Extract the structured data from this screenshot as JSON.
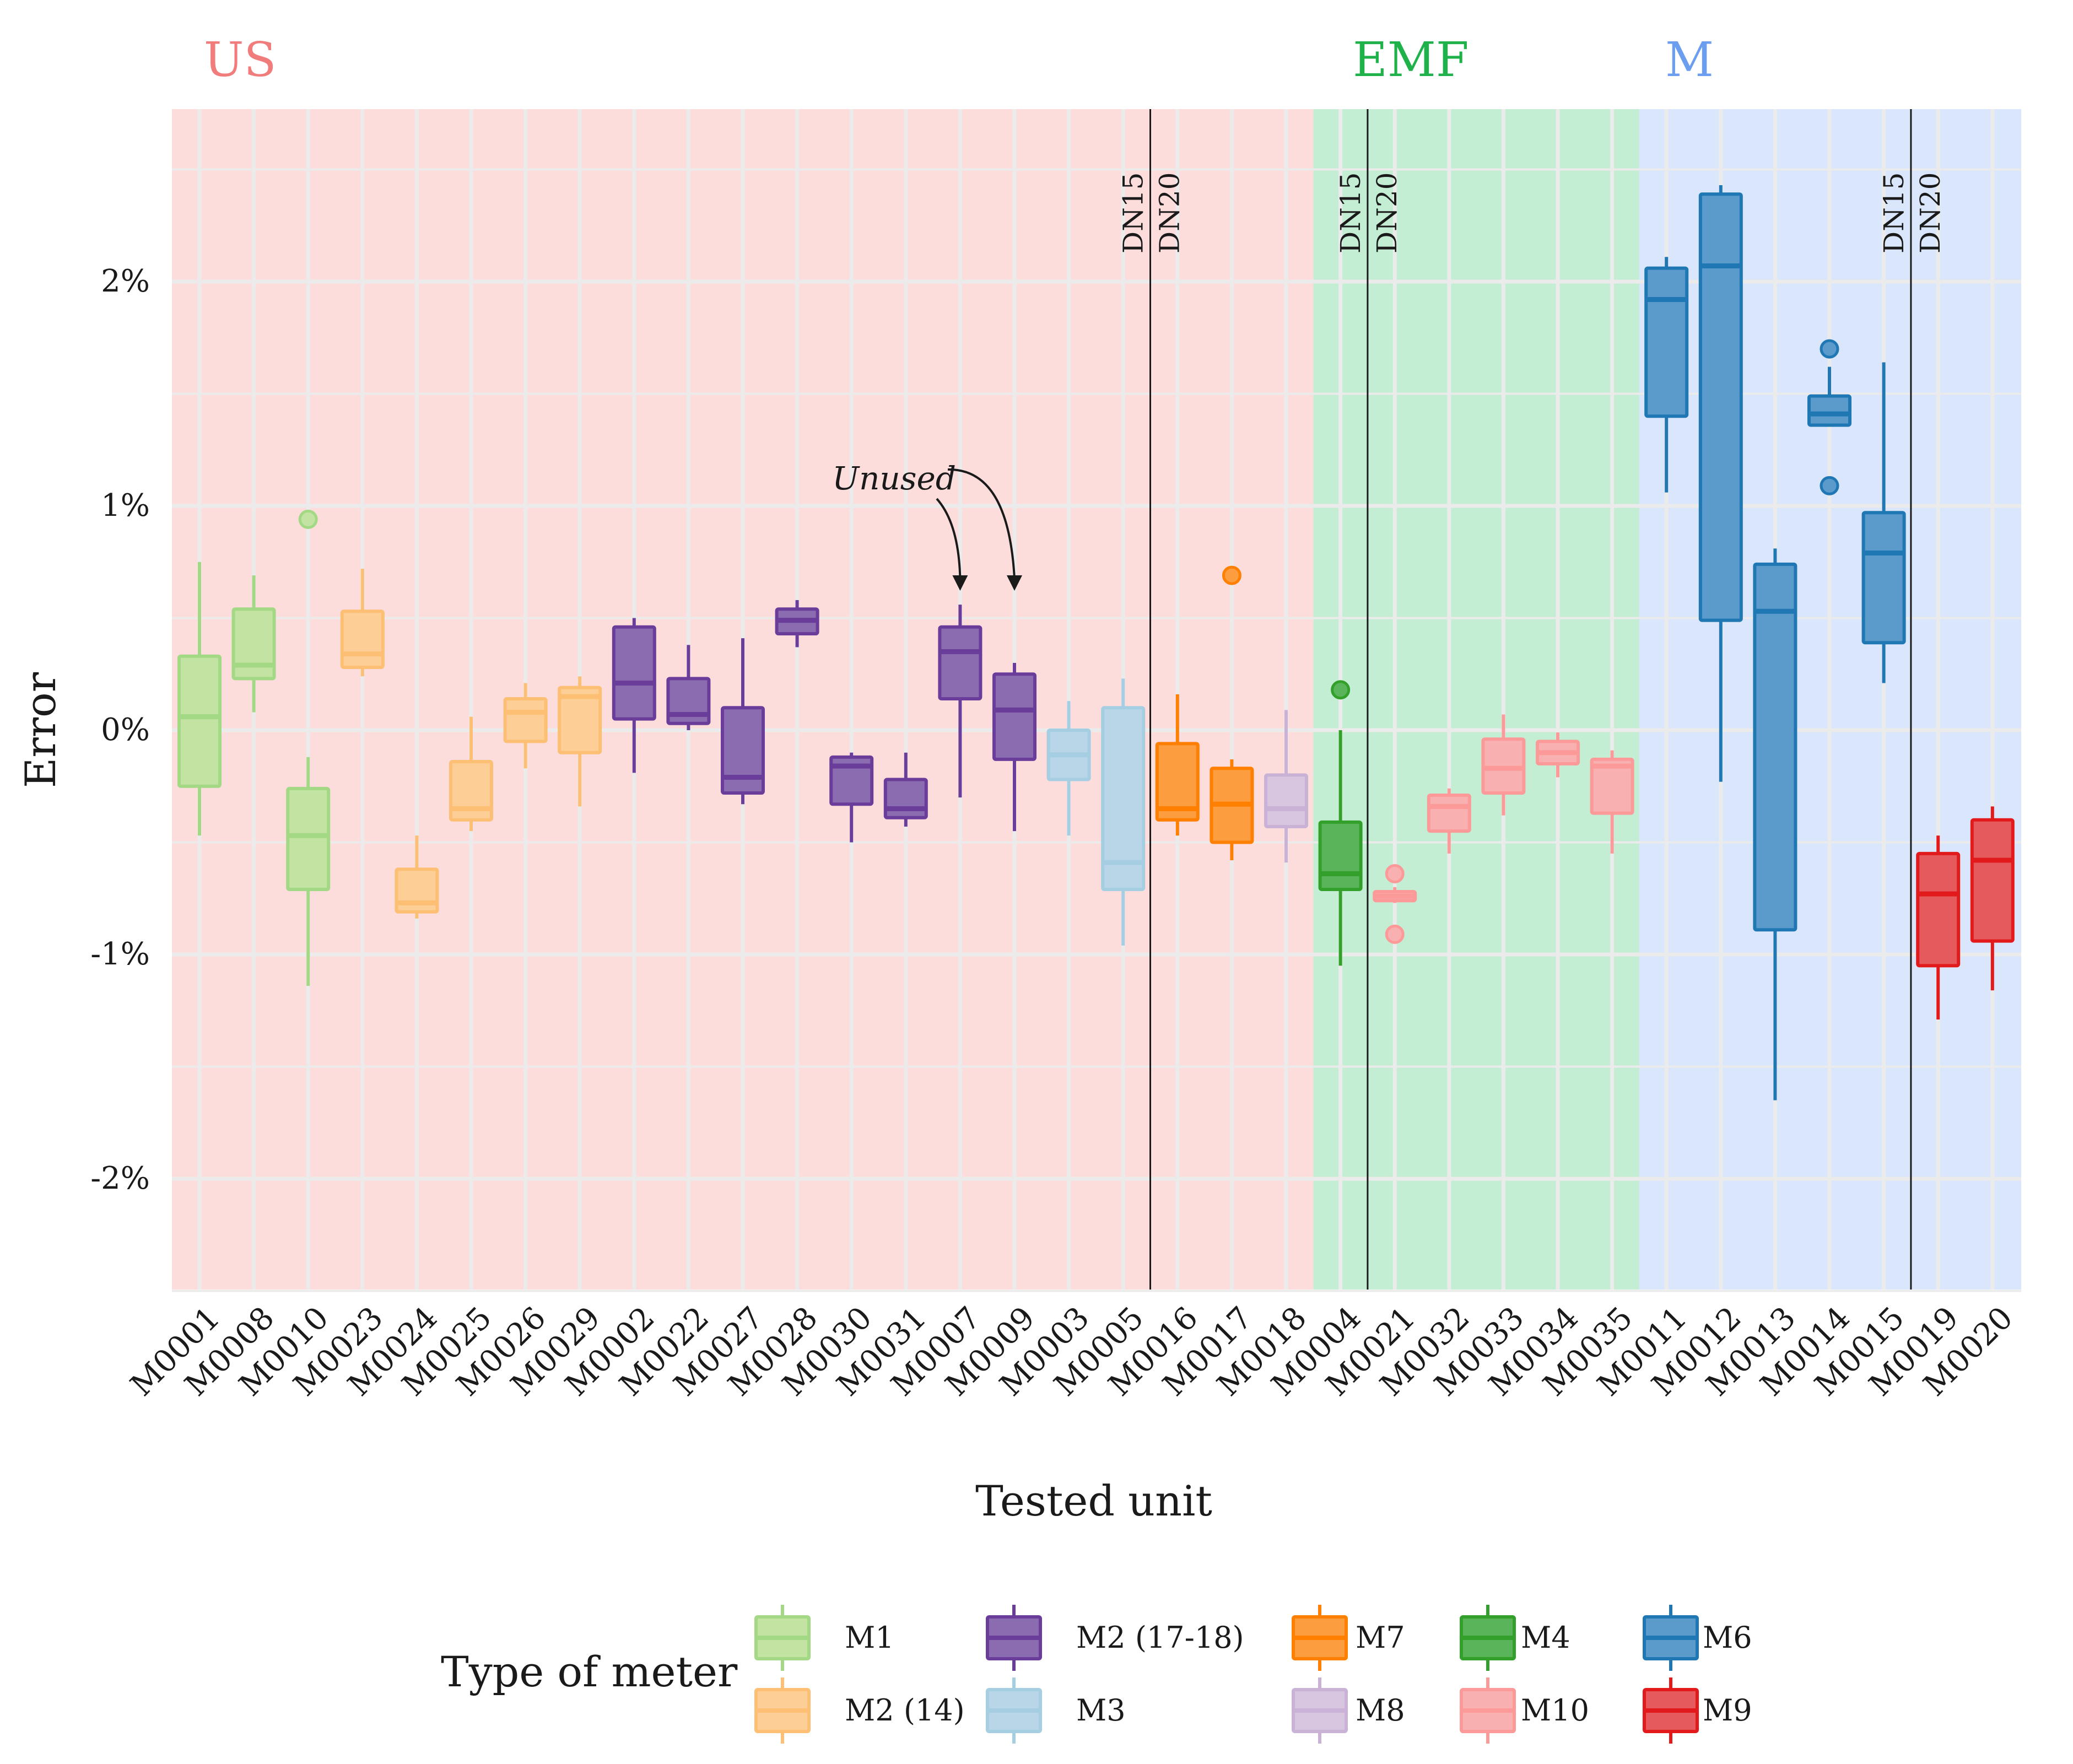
{
  "chart_data": {
    "type": "boxplot",
    "xlabel": "Tested unit",
    "ylabel": "Error",
    "ylim": [
      -2.5,
      2.75
    ],
    "y_ticks": [
      -2,
      -1,
      0,
      1,
      2
    ],
    "y_tick_labels": [
      "-2%",
      "-1%",
      "0%",
      "1%",
      "2%"
    ],
    "grid": true,
    "legend_position": "bottom",
    "legend_title": "Type of meter",
    "regions": [
      {
        "label": "US",
        "from": "M0001",
        "to": "M0018",
        "label_color": "#f07c7c",
        "fill": "#fddcdc"
      },
      {
        "label": "EMF",
        "from": "M0004",
        "to": "M0035",
        "label_color": "#1fb24a",
        "fill": "#c3eed3"
      },
      {
        "label": "M",
        "from": "M0011",
        "to": "M0020",
        "label_color": "#6c9ef0",
        "fill": "#dae6fb"
      }
    ],
    "dividers": [
      {
        "after": "M0005",
        "left_label": "DN15",
        "right_label": "DN20"
      },
      {
        "after": "M0004",
        "left_label": "DN15",
        "right_label": "DN20",
        "left_of": true
      },
      {
        "after": "M0015",
        "left_label": "DN15",
        "right_label": "DN20"
      }
    ],
    "annotation": {
      "text": "Unused",
      "targets": [
        "M0007",
        "M0009"
      ]
    },
    "meter_types": [
      {
        "name": "M1",
        "fill": "#c3e3a3",
        "stroke": "#a3d985"
      },
      {
        "name": "M2 (14)",
        "fill": "#fdcf97",
        "stroke": "#fcbf73"
      },
      {
        "name": "M2 (17-18)",
        "fill": "#8b6cb0",
        "stroke": "#6a3d9a"
      },
      {
        "name": "M3",
        "fill": "#b9d6e9",
        "stroke": "#a6cee3"
      },
      {
        "name": "M7",
        "fill": "#fc9d40",
        "stroke": "#ff7f00"
      },
      {
        "name": "M8",
        "fill": "#d8c5e0",
        "stroke": "#cab2d6"
      },
      {
        "name": "M4",
        "fill": "#5ab55a",
        "stroke": "#33a02c"
      },
      {
        "name": "M10",
        "fill": "#f9b0b1",
        "stroke": "#fb9a99"
      },
      {
        "name": "M6",
        "fill": "#5b9bcc",
        "stroke": "#1f78b4"
      },
      {
        "name": "M9",
        "fill": "#e55a5c",
        "stroke": "#e31a1c"
      }
    ],
    "categories": [
      "M0001",
      "M0008",
      "M0010",
      "M0023",
      "M0024",
      "M0025",
      "M0026",
      "M0029",
      "M0002",
      "M0022",
      "M0027",
      "M0028",
      "M0030",
      "M0031",
      "M0007",
      "M0009",
      "M0003",
      "M0005",
      "M0016",
      "M0017",
      "M0018",
      "M0004",
      "M0021",
      "M0032",
      "M0033",
      "M0034",
      "M0035",
      "M0011",
      "M0012",
      "M0013",
      "M0014",
      "M0015",
      "M0019",
      "M0020"
    ],
    "boxes": [
      {
        "unit": "M0001",
        "type": "M1",
        "whisker_low": -0.47,
        "q1": -0.25,
        "median": 0.06,
        "q3": 0.33,
        "whisker_high": 0.75,
        "outliers": []
      },
      {
        "unit": "M0008",
        "type": "M1",
        "whisker_low": 0.08,
        "q1": 0.23,
        "median": 0.29,
        "q3": 0.54,
        "whisker_high": 0.69,
        "outliers": []
      },
      {
        "unit": "M0010",
        "type": "M1",
        "whisker_low": -1.14,
        "q1": -0.71,
        "median": -0.47,
        "q3": -0.26,
        "whisker_high": -0.12,
        "outliers": [
          0.94
        ]
      },
      {
        "unit": "M0023",
        "type": "M2 (14)",
        "whisker_low": 0.24,
        "q1": 0.28,
        "median": 0.34,
        "q3": 0.53,
        "whisker_high": 0.72,
        "outliers": []
      },
      {
        "unit": "M0024",
        "type": "M2 (14)",
        "whisker_low": -0.84,
        "q1": -0.81,
        "median": -0.77,
        "q3": -0.62,
        "whisker_high": -0.47,
        "outliers": []
      },
      {
        "unit": "M0025",
        "type": "M2 (14)",
        "whisker_low": -0.45,
        "q1": -0.4,
        "median": -0.35,
        "q3": -0.14,
        "whisker_high": 0.06,
        "outliers": []
      },
      {
        "unit": "M0026",
        "type": "M2 (14)",
        "whisker_low": -0.17,
        "q1": -0.05,
        "median": 0.08,
        "q3": 0.14,
        "whisker_high": 0.21,
        "outliers": []
      },
      {
        "unit": "M0029",
        "type": "M2 (14)",
        "whisker_low": -0.34,
        "q1": -0.1,
        "median": 0.15,
        "q3": 0.19,
        "whisker_high": 0.24,
        "outliers": []
      },
      {
        "unit": "M0002",
        "type": "M2 (17-18)",
        "whisker_low": -0.19,
        "q1": 0.05,
        "median": 0.21,
        "q3": 0.46,
        "whisker_high": 0.5,
        "outliers": []
      },
      {
        "unit": "M0022",
        "type": "M2 (17-18)",
        "whisker_low": 0.0,
        "q1": 0.03,
        "median": 0.07,
        "q3": 0.23,
        "whisker_high": 0.38,
        "outliers": []
      },
      {
        "unit": "M0027",
        "type": "M2 (17-18)",
        "whisker_low": -0.33,
        "q1": -0.28,
        "median": -0.21,
        "q3": 0.1,
        "whisker_high": 0.41,
        "outliers": []
      },
      {
        "unit": "M0028",
        "type": "M2 (17-18)",
        "whisker_low": 0.37,
        "q1": 0.43,
        "median": 0.49,
        "q3": 0.54,
        "whisker_high": 0.58,
        "outliers": []
      },
      {
        "unit": "M0030",
        "type": "M2 (17-18)",
        "whisker_low": -0.5,
        "q1": -0.33,
        "median": -0.16,
        "q3": -0.12,
        "whisker_high": -0.1,
        "outliers": []
      },
      {
        "unit": "M0031",
        "type": "M2 (17-18)",
        "whisker_low": -0.43,
        "q1": -0.39,
        "median": -0.35,
        "q3": -0.22,
        "whisker_high": -0.1,
        "outliers": []
      },
      {
        "unit": "M0007",
        "type": "M2 (17-18)",
        "whisker_low": -0.3,
        "q1": 0.14,
        "median": 0.35,
        "q3": 0.46,
        "whisker_high": 0.56,
        "outliers": []
      },
      {
        "unit": "M0009",
        "type": "M2 (17-18)",
        "whisker_low": -0.45,
        "q1": -0.13,
        "median": 0.09,
        "q3": 0.25,
        "whisker_high": 0.3,
        "outliers": []
      },
      {
        "unit": "M0003",
        "type": "M3",
        "whisker_low": -0.47,
        "q1": -0.22,
        "median": -0.11,
        "q3": 0.0,
        "whisker_high": 0.13,
        "outliers": []
      },
      {
        "unit": "M0005",
        "type": "M3",
        "whisker_low": -0.96,
        "q1": -0.71,
        "median": -0.59,
        "q3": 0.1,
        "whisker_high": 0.23,
        "outliers": []
      },
      {
        "unit": "M0016",
        "type": "M7",
        "whisker_low": -0.47,
        "q1": -0.4,
        "median": -0.35,
        "q3": -0.06,
        "whisker_high": 0.16,
        "outliers": []
      },
      {
        "unit": "M0017",
        "type": "M7",
        "whisker_low": -0.58,
        "q1": -0.5,
        "median": -0.33,
        "q3": -0.17,
        "whisker_high": -0.13,
        "outliers": [
          0.69
        ]
      },
      {
        "unit": "M0018",
        "type": "M8",
        "whisker_low": -0.59,
        "q1": -0.43,
        "median": -0.35,
        "q3": -0.2,
        "whisker_high": 0.09,
        "outliers": []
      },
      {
        "unit": "M0004",
        "type": "M4",
        "whisker_low": -1.05,
        "q1": -0.71,
        "median": -0.64,
        "q3": -0.41,
        "whisker_high": 0.0,
        "outliers": [
          0.18
        ]
      },
      {
        "unit": "M0021",
        "type": "M10",
        "whisker_low": -0.77,
        "q1": -0.76,
        "median": -0.74,
        "q3": -0.72,
        "whisker_high": -0.7,
        "outliers": [
          -0.64,
          -0.91
        ]
      },
      {
        "unit": "M0032",
        "type": "M10",
        "whisker_low": -0.55,
        "q1": -0.45,
        "median": -0.34,
        "q3": -0.29,
        "whisker_high": -0.26,
        "outliers": []
      },
      {
        "unit": "M0033",
        "type": "M10",
        "whisker_low": -0.38,
        "q1": -0.28,
        "median": -0.17,
        "q3": -0.04,
        "whisker_high": 0.07,
        "outliers": []
      },
      {
        "unit": "M0034",
        "type": "M10",
        "whisker_low": -0.21,
        "q1": -0.15,
        "median": -0.1,
        "q3": -0.05,
        "whisker_high": -0.01,
        "outliers": []
      },
      {
        "unit": "M0035",
        "type": "M10",
        "whisker_low": -0.55,
        "q1": -0.37,
        "median": -0.16,
        "q3": -0.13,
        "whisker_high": -0.09,
        "outliers": []
      },
      {
        "unit": "M0011",
        "type": "M6",
        "whisker_low": 1.06,
        "q1": 1.4,
        "median": 1.92,
        "q3": 2.06,
        "whisker_high": 2.11,
        "outliers": []
      },
      {
        "unit": "M0012",
        "type": "M6",
        "whisker_low": -0.23,
        "q1": 0.49,
        "median": 2.07,
        "q3": 2.39,
        "whisker_high": 2.43,
        "outliers": []
      },
      {
        "unit": "M0013",
        "type": "M6",
        "whisker_low": -1.65,
        "q1": -0.89,
        "median": 0.53,
        "q3": 0.74,
        "whisker_high": 0.81,
        "outliers": []
      },
      {
        "unit": "M0014",
        "type": "M6",
        "whisker_low": 1.36,
        "q1": 1.36,
        "median": 1.41,
        "q3": 1.49,
        "whisker_high": 1.62,
        "outliers": [
          1.7,
          1.09
        ]
      },
      {
        "unit": "M0015",
        "type": "M6",
        "whisker_low": 0.21,
        "q1": 0.39,
        "median": 0.79,
        "q3": 0.97,
        "whisker_high": 1.64,
        "outliers": []
      },
      {
        "unit": "M0019",
        "type": "M9",
        "whisker_low": -1.29,
        "q1": -1.05,
        "median": -0.73,
        "q3": -0.55,
        "whisker_high": -0.47,
        "outliers": []
      },
      {
        "unit": "M0020",
        "type": "M9",
        "whisker_low": -1.16,
        "q1": -0.94,
        "median": -0.58,
        "q3": -0.4,
        "whisker_high": -0.34,
        "outliers": []
      }
    ]
  }
}
